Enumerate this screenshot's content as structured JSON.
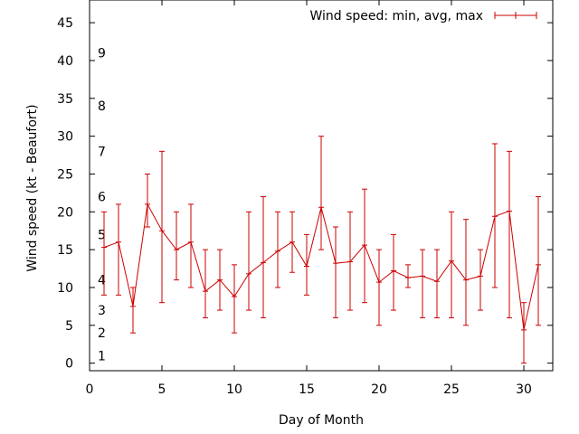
{
  "chart_data": {
    "type": "line",
    "title": "",
    "xlabel": "Day of Month",
    "ylabel": "Wind speed (kt - Beaufort)",
    "xlim": [
      0,
      32
    ],
    "ylim": [
      -1,
      48
    ],
    "xticks": [
      0,
      5,
      10,
      15,
      20,
      25,
      30
    ],
    "yticks": [
      0,
      5,
      10,
      15,
      20,
      25,
      30,
      35,
      40,
      45
    ],
    "grid": false,
    "legend_position": "top-right",
    "series": [
      {
        "name": "Wind speed: min, avg, max",
        "color": "#cc0000",
        "x": [
          1,
          2,
          3,
          4,
          5,
          6,
          7,
          8,
          9,
          10,
          11,
          12,
          13,
          14,
          15,
          16,
          17,
          18,
          19,
          20,
          21,
          22,
          23,
          24,
          25,
          26,
          27,
          28,
          29,
          30,
          31
        ],
        "avg": [
          15.3,
          16,
          7.5,
          21,
          17.5,
          15,
          16,
          9.5,
          11,
          8.8,
          11.8,
          13.3,
          14.8,
          16,
          12.8,
          20.6,
          13.2,
          13.4,
          15.6,
          10.7,
          12.2,
          11.3,
          11.5,
          10.8,
          13.5,
          11,
          11.5,
          19.4,
          20.1,
          4.4,
          13
        ],
        "min": [
          9,
          9,
          4,
          18,
          8,
          11,
          10,
          6,
          7,
          4,
          7,
          6,
          10,
          12,
          9,
          15,
          6,
          7,
          8,
          5,
          7,
          10,
          6,
          6,
          6,
          5,
          7,
          10,
          6,
          0,
          5
        ],
        "max": [
          20,
          21,
          10,
          25,
          28,
          20,
          21,
          15,
          15,
          13,
          20,
          22,
          20,
          20,
          17,
          30,
          18,
          20,
          23,
          15,
          17,
          13,
          15,
          15,
          20,
          19,
          15,
          29,
          28,
          8,
          22
        ]
      }
    ],
    "annotations": [
      {
        "text": "1",
        "y": 1
      },
      {
        "text": "2",
        "y": 4
      },
      {
        "text": "3",
        "y": 7
      },
      {
        "text": "4",
        "y": 11
      },
      {
        "text": "5",
        "y": 17
      },
      {
        "text": "6",
        "y": 22
      },
      {
        "text": "7",
        "y": 28
      },
      {
        "text": "8",
        "y": 34
      },
      {
        "text": "9",
        "y": 41
      }
    ]
  }
}
